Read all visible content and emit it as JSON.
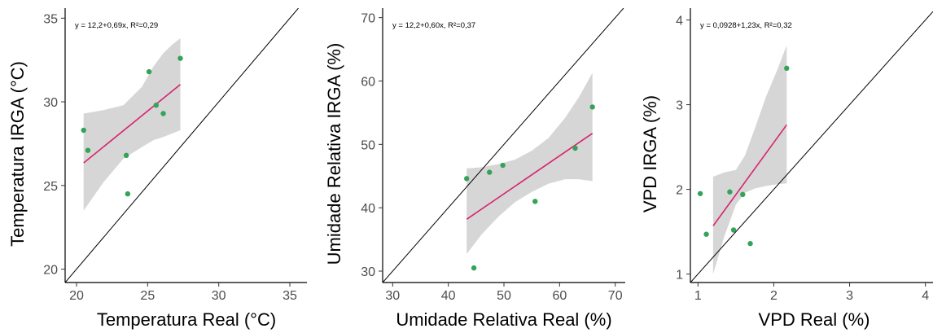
{
  "chart_data": [
    {
      "type": "scatter",
      "xlabel": "Temperatura Real (°C)",
      "ylabel": "Temperatura IRGA (°C)",
      "annotation": "y = 12,2+0,69x, R²=0,29",
      "xlim": [
        19.2,
        36.2
      ],
      "ylim": [
        19.2,
        35.6
      ],
      "xticks": [
        "20",
        "25",
        "30",
        "35"
      ],
      "yticks": [
        "20",
        "25",
        "30",
        "35"
      ],
      "points": [
        [
          20.5,
          28.3
        ],
        [
          20.8,
          27.1
        ],
        [
          23.5,
          26.8
        ],
        [
          23.6,
          24.5
        ],
        [
          25.1,
          31.8
        ],
        [
          25.6,
          29.8
        ],
        [
          26.1,
          29.3
        ],
        [
          27.3,
          32.6
        ]
      ],
      "fit": {
        "intercept": 12.2,
        "slope": 0.69,
        "x_range": [
          20.5,
          27.3
        ]
      },
      "band": {
        "x": [
          20.5,
          21.9,
          23.3,
          24.6,
          25.4,
          26.1,
          26.7,
          27.3
        ],
        "lower": [
          23.5,
          25.2,
          26.6,
          27.3,
          27.7,
          27.9,
          28.1,
          28.3
        ],
        "upper": [
          29.3,
          29.5,
          29.8,
          30.9,
          32.1,
          32.9,
          33.4,
          33.8
        ]
      },
      "diagonal": true,
      "grid": false
    },
    {
      "type": "scatter",
      "xlabel": "Umidade Relativa Real (%)",
      "ylabel": "Umidade Relativa IRGA (%)",
      "annotation": "y = 12,2+0,60x, R²=0,37",
      "xlim": [
        28.2,
        71.8
      ],
      "ylim": [
        28.2,
        71.5
      ],
      "xticks": [
        "30",
        "40",
        "50",
        "60",
        "70"
      ],
      "yticks": [
        "30",
        "40",
        "50",
        "60",
        "70"
      ],
      "points": [
        [
          43.3,
          44.6
        ],
        [
          44.6,
          30.5
        ],
        [
          47.4,
          45.6
        ],
        [
          49.8,
          46.7
        ],
        [
          55.6,
          41.0
        ],
        [
          62.8,
          49.4
        ],
        [
          65.9,
          55.9
        ]
      ],
      "fit": {
        "intercept": 12.2,
        "slope": 0.6,
        "x_range": [
          43.3,
          65.9
        ]
      },
      "band": {
        "x": [
          43.3,
          46.0,
          49.0,
          52.0,
          55.0,
          58.0,
          61.0,
          63.5,
          65.9
        ],
        "lower": [
          32.7,
          35.8,
          38.6,
          40.9,
          42.5,
          43.8,
          44.5,
          44.5,
          44.2
        ],
        "upper": [
          46.2,
          46.4,
          46.9,
          47.6,
          49.0,
          51.0,
          54.2,
          57.5,
          61.3
        ]
      },
      "diagonal": true,
      "grid": false
    },
    {
      "type": "scatter",
      "xlabel": "VPD Real (%)",
      "ylabel": "VPD IRGA (%)",
      "annotation": "y = 0,0928+1,23x, R²=0,32",
      "xlim": [
        0.9,
        4.1
      ],
      "ylim": [
        0.9,
        4.14
      ],
      "xticks": [
        "1",
        "2",
        "3",
        "4"
      ],
      "yticks": [
        "1",
        "2",
        "3",
        "4"
      ],
      "points": [
        [
          1.03,
          1.95
        ],
        [
          1.11,
          1.47
        ],
        [
          1.42,
          1.97
        ],
        [
          1.47,
          1.52
        ],
        [
          1.59,
          1.94
        ],
        [
          1.69,
          1.36
        ],
        [
          2.17,
          3.43
        ]
      ],
      "fit": {
        "intercept": 0.0928,
        "slope": 1.23,
        "x_range": [
          1.2,
          2.17
        ]
      },
      "band": {
        "x": [
          1.2,
          1.35,
          1.5,
          1.62,
          1.75,
          1.9,
          2.05,
          2.17
        ],
        "lower": [
          1.0,
          1.45,
          1.82,
          1.96,
          2.01,
          2.04,
          2.06,
          2.07
        ],
        "upper": [
          2.15,
          2.2,
          2.23,
          2.4,
          2.72,
          3.1,
          3.42,
          3.7
        ]
      },
      "diagonal": true,
      "grid": false
    }
  ],
  "colors": {
    "points": "#33a357",
    "fit": "#d6246e",
    "band": "#d6d6d6",
    "diagonal": "#000000"
  }
}
